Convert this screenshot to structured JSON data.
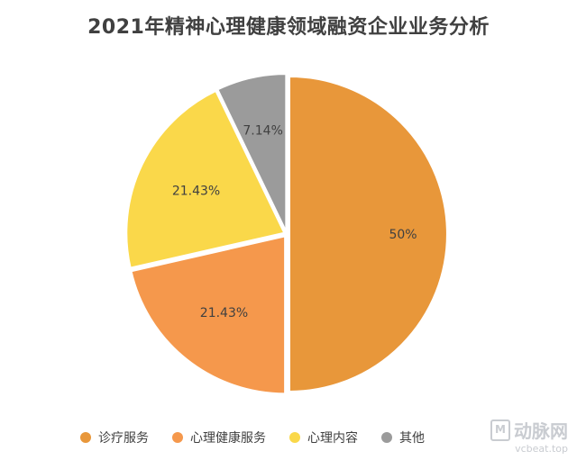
{
  "chart_data": {
    "type": "pie",
    "title": "2021年精神心理健康领域融资企业业务分析",
    "slices": [
      {
        "name": "诊疗服务",
        "value": 50,
        "label": "50%",
        "color": "#E8973A"
      },
      {
        "name": "心理健康服务",
        "value": 21.43,
        "label": "21.43%",
        "color": "#F5984C"
      },
      {
        "name": "心理内容",
        "value": 21.43,
        "label": "21.43%",
        "color": "#FAD84A"
      },
      {
        "name": "其他",
        "value": 7.14,
        "label": "7.14%",
        "color": "#9B9B9B"
      }
    ],
    "legend_position": "bottom"
  },
  "watermark": {
    "logo": "动脉网",
    "url": "vcbeat.top"
  }
}
